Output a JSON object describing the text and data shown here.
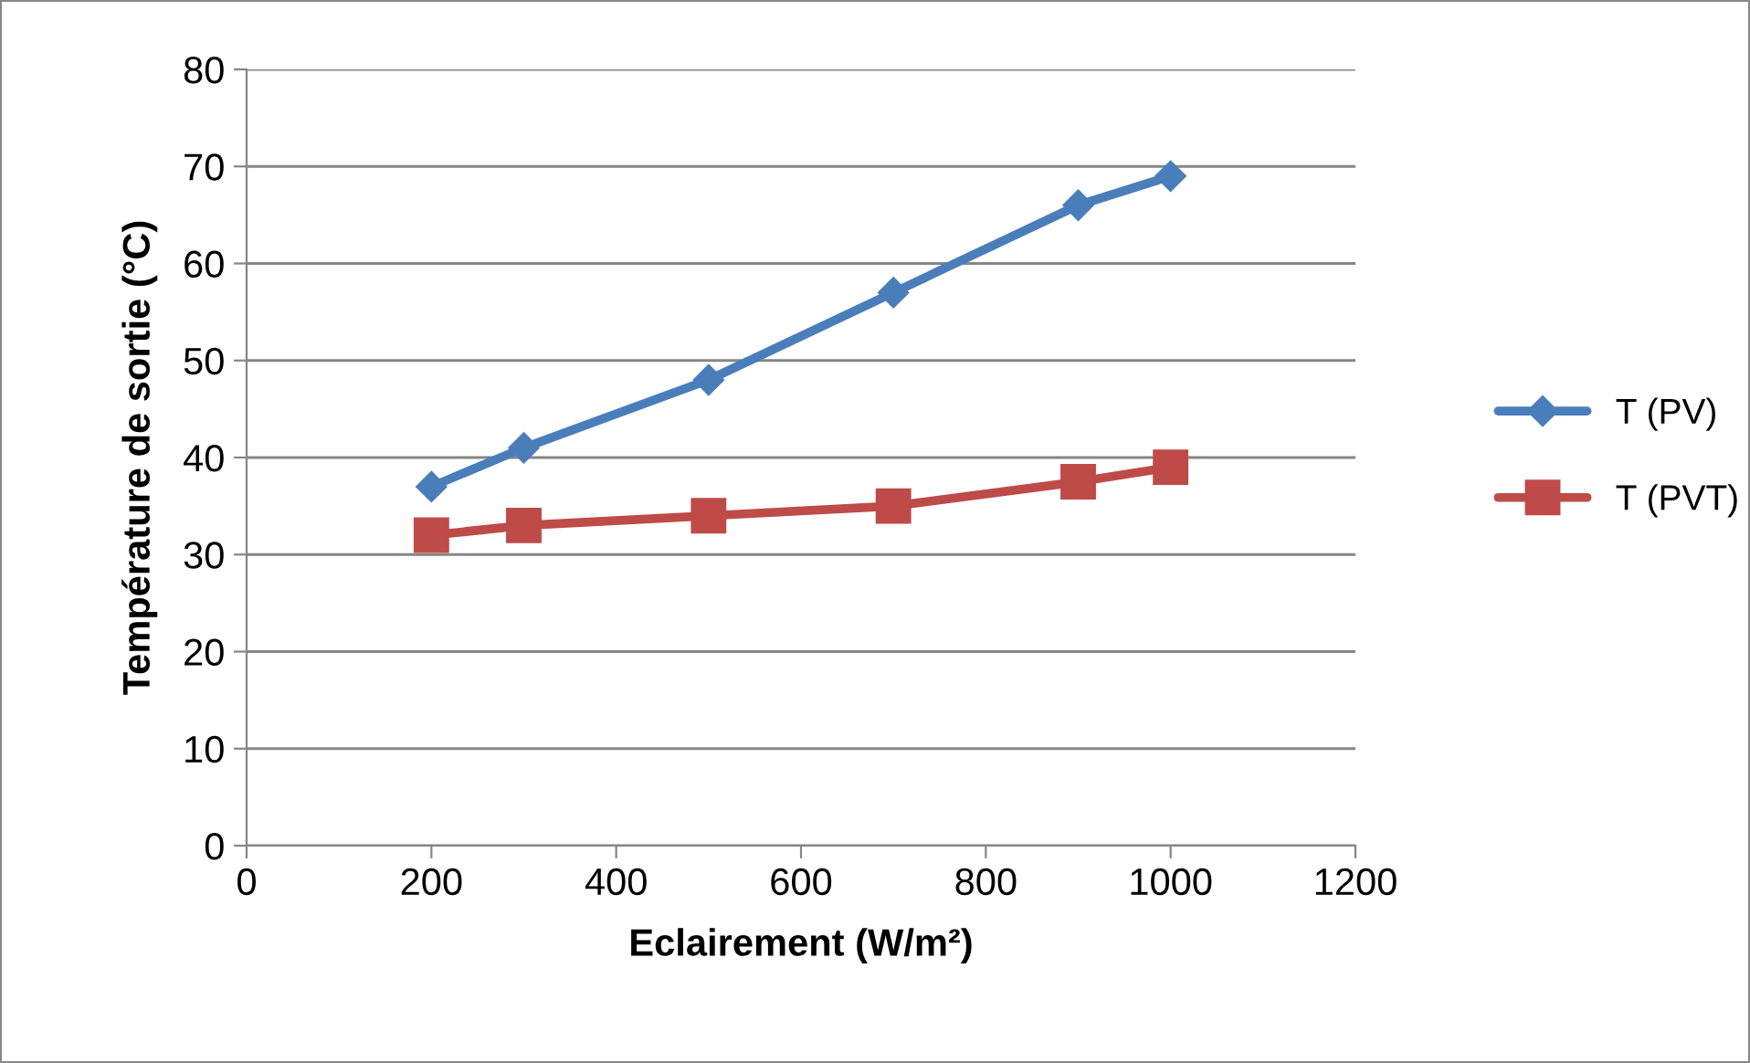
{
  "chart_data": {
    "type": "line",
    "xlabel": "Eclairement (W/m²)",
    "ylabel": "Température de sortie (°C)",
    "x": [
      200,
      300,
      500,
      700,
      900,
      1000
    ],
    "series": [
      {
        "name": "T (PV)",
        "color": "#4a7ebb",
        "marker": "diamond",
        "values": [
          37,
          41,
          48,
          57,
          66,
          69
        ]
      },
      {
        "name": "T (PVT)",
        "color": "#be4b48",
        "marker": "square",
        "values": [
          32,
          33,
          34,
          35,
          37.5,
          39
        ]
      }
    ],
    "xlim": [
      0,
      1200
    ],
    "xticks": [
      0,
      200,
      400,
      600,
      800,
      1000,
      1200
    ],
    "ylim": [
      0,
      80
    ],
    "yticks": [
      0,
      10,
      20,
      30,
      40,
      50,
      60,
      70,
      80
    ],
    "grid": "y",
    "legend": "right",
    "line_style": "solid"
  }
}
